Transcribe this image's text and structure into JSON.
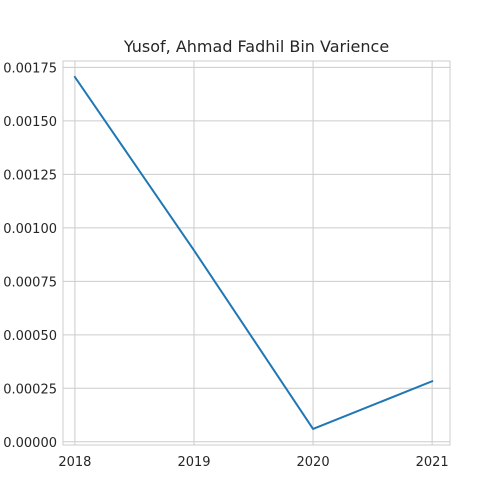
{
  "chart_data": {
    "type": "line",
    "title": "Yusof, Ahmad Fadhil Bin Varience",
    "xlabel": "",
    "ylabel": "",
    "x": [
      2018,
      2019,
      2020,
      2021
    ],
    "x_tick_labels": [
      "2018",
      "2019",
      "2020",
      "2021"
    ],
    "series": [
      {
        "values": [
          0.001705,
          0.000895,
          6e-05,
          0.000283
        ]
      }
    ],
    "y_ticks": [
      0,
      0.00025,
      0.0005,
      0.00075,
      0.001,
      0.00125,
      0.0015,
      0.00175
    ],
    "y_tick_labels": [
      "0.00000",
      "0.00025",
      "0.00050",
      "0.00075",
      "0.00100",
      "0.00125",
      "0.00150",
      "0.00175"
    ],
    "xlim": [
      2017.9,
      2021.15
    ],
    "ylim": [
      -1.5e-05,
      0.00178
    ],
    "grid": true,
    "line_color": "#1f77b4",
    "legend": false
  }
}
